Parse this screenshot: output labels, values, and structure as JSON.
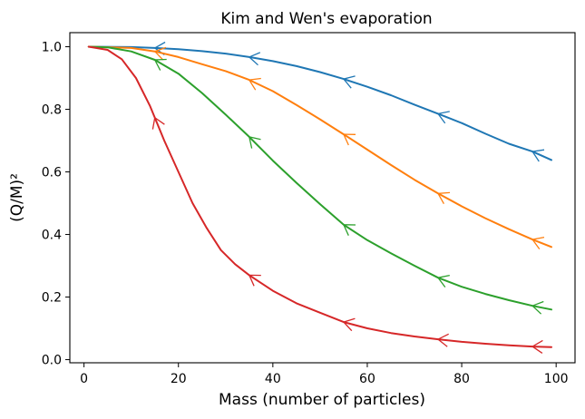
{
  "chart_data": {
    "type": "line",
    "title": "Kim and Wen's evaporation",
    "xlabel": "Mass (number of particles)",
    "ylabel": "(Q/M)²",
    "xlim": [
      -3,
      104
    ],
    "ylim": [
      -0.01,
      1.045
    ],
    "x_ticks": [
      0,
      20,
      40,
      60,
      80,
      100
    ],
    "x_tick_labels": [
      "0",
      "20",
      "40",
      "60",
      "80",
      "100"
    ],
    "y_ticks": [
      0.0,
      0.2,
      0.4,
      0.6,
      0.8,
      1.0
    ],
    "y_tick_labels": [
      "0.0",
      "0.2",
      "0.4",
      "0.6",
      "0.8",
      "1.0"
    ],
    "grid": false,
    "legend": "none",
    "arrows_direction": "decreasing-x",
    "series": [
      {
        "color": "#1f77b4",
        "x": [
          1,
          10,
          15,
          20,
          25,
          30,
          35,
          40,
          45,
          50,
          55,
          60,
          65,
          70,
          75,
          80,
          85,
          90,
          95,
          99
        ],
        "y": [
          1.0,
          0.999,
          0.996,
          0.992,
          0.986,
          0.978,
          0.967,
          0.954,
          0.938,
          0.919,
          0.897,
          0.872,
          0.845,
          0.815,
          0.786,
          0.756,
          0.722,
          0.69,
          0.665,
          0.638
        ],
        "arrow_x": [
          15,
          35,
          55,
          75,
          95
        ]
      },
      {
        "color": "#ff7f0e",
        "x": [
          1,
          10,
          15,
          20,
          25,
          30,
          35,
          40,
          45,
          50,
          55,
          60,
          65,
          70,
          75,
          80,
          85,
          90,
          95,
          99
        ],
        "y": [
          1.0,
          0.996,
          0.985,
          0.967,
          0.944,
          0.922,
          0.894,
          0.858,
          0.814,
          0.768,
          0.72,
          0.671,
          0.622,
          0.575,
          0.531,
          0.49,
          0.452,
          0.417,
          0.384,
          0.36
        ],
        "arrow_x": [
          15,
          35,
          55,
          75,
          95
        ]
      },
      {
        "color": "#2ca02c",
        "x": [
          1,
          5,
          10,
          15,
          20,
          25,
          30,
          35,
          40,
          45,
          50,
          55,
          60,
          65,
          70,
          75,
          80,
          85,
          90,
          95,
          99
        ],
        "y": [
          1.0,
          0.998,
          0.985,
          0.958,
          0.914,
          0.852,
          0.783,
          0.712,
          0.636,
          0.565,
          0.497,
          0.431,
          0.382,
          0.34,
          0.3,
          0.262,
          0.233,
          0.21,
          0.19,
          0.172,
          0.16
        ],
        "arrow_x": [
          15,
          35,
          55,
          75,
          95
        ]
      },
      {
        "color": "#d62728",
        "x": [
          1,
          5,
          8,
          11,
          14,
          17,
          20,
          23,
          26,
          29,
          32,
          35,
          40,
          45,
          50,
          55,
          60,
          65,
          70,
          75,
          80,
          85,
          90,
          95,
          99
        ],
        "y": [
          1.0,
          0.99,
          0.96,
          0.9,
          0.81,
          0.7,
          0.6,
          0.5,
          0.42,
          0.35,
          0.305,
          0.27,
          0.22,
          0.18,
          0.15,
          0.12,
          0.1,
          0.085,
          0.074,
          0.065,
          0.057,
          0.051,
          0.046,
          0.042,
          0.04
        ],
        "arrow_x": [
          15,
          35,
          55,
          75,
          95
        ]
      }
    ]
  }
}
